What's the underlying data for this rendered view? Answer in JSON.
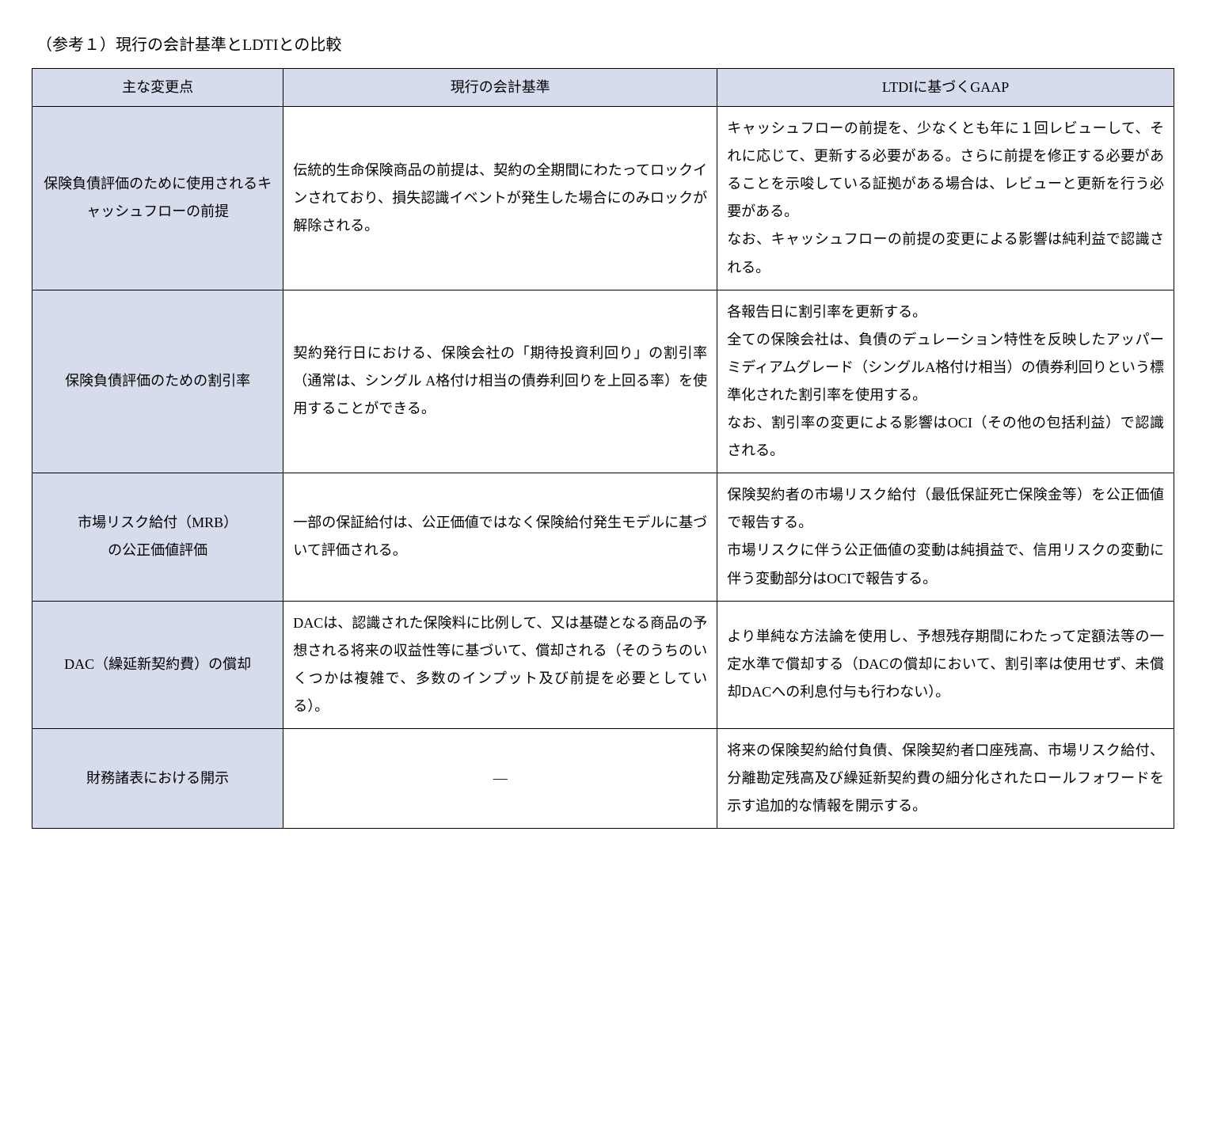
{
  "title": "（参考１）現行の会計基準とLDTIとの比較",
  "table": {
    "headers": [
      "主な変更点",
      "現行の会計基準",
      "LTDIに基づくGAAP"
    ],
    "rows": [
      {
        "label": "保険負債評価のために使用されるキャッシュフローの前提",
        "current": "伝統的生命保険商品の前提は、契約の全期間にわたってロックインされており、損失認識イベントが発生した場合にのみロックが解除される。",
        "ldti": "キャッシュフローの前提を、少なくとも年に１回レビューして、それに応じて、更新する必要がある。さらに前提を修正する必要があることを示唆している証拠がある場合は、レビューと更新を行う必要がある。\nなお、キャッシュフローの前提の変更による影響は純利益で認識される。"
      },
      {
        "label": "保険負債評価のための割引率",
        "current": "契約発行日における、保険会社の「期待投資利回り」の割引率（通常は、シングル A格付け相当の債券利回りを上回る率）を使用することができる。",
        "ldti": "各報告日に割引率を更新する。\n全ての保険会社は、負債のデュレーション特性を反映したアッパーミディアムグレード（シングルA格付け相当）の債券利回りという標準化された割引率を使用する。\nなお、割引率の変更による影響はOCI（その他の包括利益）で認識される。"
      },
      {
        "label": "市場リスク給付（MRB）\nの公正価値評価",
        "current": "一部の保証給付は、公正価値ではなく保険給付発生モデルに基づいて評価される。",
        "ldti": "保険契約者の市場リスク給付（最低保証死亡保険金等）を公正価値で報告する。\n市場リスクに伴う公正価値の変動は純損益で、信用リスクの変動に伴う変動部分はOCIで報告する。"
      },
      {
        "label": "DAC（繰延新契約費）の償却",
        "current": "DACは、認識された保険料に比例して、又は基礎となる商品の予想される将来の収益性等に基づいて、償却される（そのうちのいくつかは複雑で、多数のインプット及び前提を必要としている）。",
        "ldti": "より単純な方法論を使用し、予想残存期間にわたって定額法等の一定水準で償却する（DACの償却において、割引率は使用せず、未償却DACへの利息付与も行わない）。"
      },
      {
        "label": "財務諸表における開示",
        "current": "―",
        "current_centered": true,
        "ldti": "将来の保険契約給付負債、保険契約者口座残高、市場リスク給付、分離勘定残高及び繰延新契約費の細分化されたロールフォワードを示す追加的な情報を開示する。"
      }
    ]
  },
  "colors": {
    "header_bg": "#d6dcec",
    "border": "#000000",
    "text": "#000000",
    "background": "#ffffff"
  }
}
